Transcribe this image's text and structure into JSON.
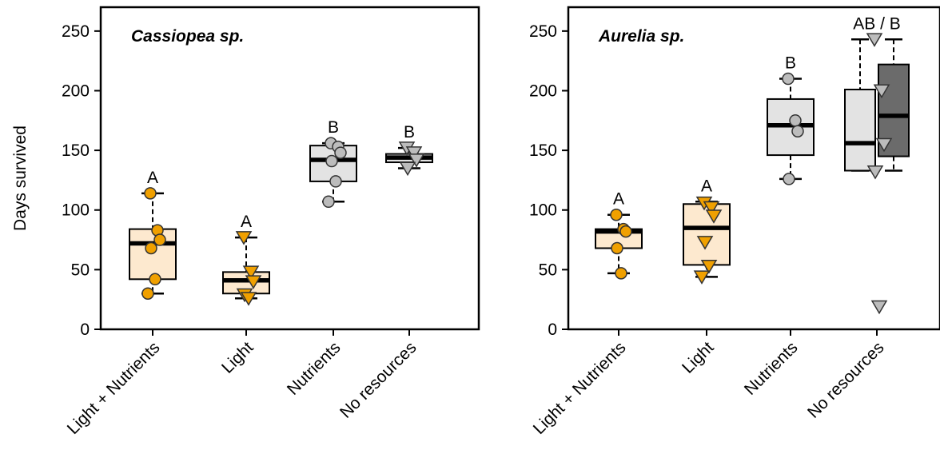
{
  "chart_data": {
    "type": "box",
    "ylabel": "Days survived",
    "ylim": [
      0,
      270
    ],
    "yticks": [
      0,
      50,
      100,
      150,
      200,
      250
    ],
    "categories": [
      "Light + Nutrients",
      "Light",
      "Nutrients",
      "No resources"
    ],
    "colors": {
      "light_fill": "#fde9cf",
      "nutrient_fill": "#e3e3e3",
      "dark_fill": "#6b6b6b",
      "orange_point": "#f0a000",
      "grey_point": "#bcbcbc"
    },
    "panels": [
      {
        "title": "Cassiopea sp.",
        "boxes": [
          {
            "category": "Light + Nutrients",
            "min": 30,
            "q1": 42,
            "median": 72,
            "q3": 84,
            "max": 114,
            "fill": "light",
            "marker": "circle",
            "point_color": "orange",
            "points": [
              114,
              83,
              75,
              68,
              42,
              30
            ],
            "letter": "A"
          },
          {
            "category": "Light",
            "min": 26,
            "q1": 30,
            "median": 41,
            "q3": 48,
            "max": 77,
            "fill": "light",
            "marker": "triangle",
            "point_color": "orange",
            "points": [
              77,
              48,
              40,
              29,
              26
            ],
            "letter": "A"
          },
          {
            "category": "Nutrients",
            "min": 107,
            "q1": 124,
            "median": 142,
            "q3": 154,
            "max": 156,
            "fill": "nutrient",
            "marker": "circle",
            "point_color": "grey",
            "points": [
              156,
              153,
              148,
              141,
              124,
              107
            ],
            "letter": "B"
          },
          {
            "category": "No resources",
            "min": 135,
            "q1": 140,
            "median": 144,
            "q3": 147,
            "max": 152,
            "fill": "nutrient",
            "marker": "triangle",
            "point_color": "grey",
            "points": [
              152,
              148,
              142,
              135
            ],
            "letter": "B"
          }
        ]
      },
      {
        "title": "Aurelia sp.",
        "boxes": [
          {
            "category": "Light + Nutrients",
            "min": 47,
            "q1": 68,
            "median": 82,
            "q3": 84,
            "max": 96,
            "fill": "light",
            "marker": "circle",
            "point_color": "orange",
            "points": [
              96,
              84,
              82,
              68,
              47
            ],
            "letter": "A"
          },
          {
            "category": "Light",
            "min": 44,
            "q1": 54,
            "median": 85,
            "q3": 105,
            "max": 107,
            "fill": "light",
            "marker": "triangle",
            "point_color": "orange",
            "points": [
              106,
              102,
              95,
              73,
              53,
              44
            ],
            "letter": "A"
          },
          {
            "category": "Nutrients",
            "min": 126,
            "q1": 146,
            "median": 171,
            "q3": 193,
            "max": 210,
            "fill": "nutrient",
            "marker": "circle",
            "point_color": "grey",
            "points": [
              210,
              175,
              166,
              126
            ],
            "letter": "B"
          },
          {
            "category": "No resources",
            "split": true,
            "letter": "AB / B",
            "sub_boxes": [
              {
                "min": 133,
                "q1": 133,
                "median": 156,
                "q3": 201,
                "max": 243,
                "fill": "nutrient"
              },
              {
                "min": 133,
                "q1": 145,
                "median": 179,
                "q3": 222,
                "max": 243,
                "fill": "dark"
              }
            ],
            "marker": "triangle",
            "point_color": "grey",
            "points": [
              243,
              200,
              155,
              132,
              19
            ]
          }
        ]
      }
    ]
  }
}
